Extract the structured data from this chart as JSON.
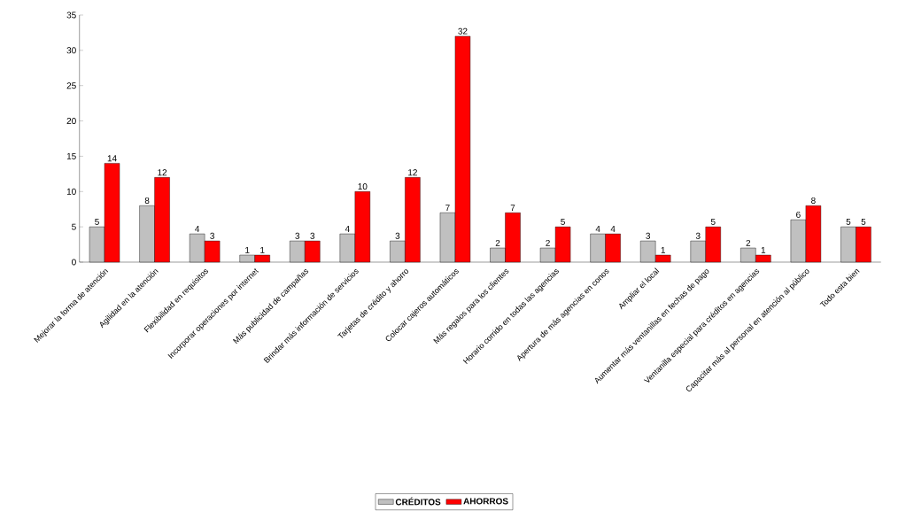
{
  "chart_data": {
    "type": "bar",
    "categories": [
      "Mejorar la forma de atención",
      "Agilidad en la atención",
      "Flexibilidad en requisitos",
      "Incorporar operaciones por internet",
      "Más publicidad de campañas",
      "Brindar más información de servicios",
      "Tarjetas de crédito y ahorro",
      "Colocar cajeros automáticos",
      "Más regalos para los clientes",
      "Horario corrido en todas las agencias",
      "Apertura de más agencias en conos",
      "Ampliar el local",
      "Aumentar más ventanillas en fechas de pago",
      "Ventanilla especial para créditos en agencias",
      "Capacitar más al personal en atención al público",
      "Todo esta bien"
    ],
    "series": [
      {
        "name": "CRÉDITOS",
        "color": "#c0c0c0",
        "values": [
          5,
          8,
          4,
          1,
          3,
          4,
          3,
          7,
          2,
          2,
          4,
          3,
          3,
          2,
          6,
          5
        ]
      },
      {
        "name": "AHORROS",
        "color": "#ff0000",
        "values": [
          14,
          12,
          3,
          1,
          3,
          10,
          12,
          32,
          7,
          5,
          4,
          1,
          5,
          1,
          8,
          5
        ]
      }
    ],
    "ylim": [
      0,
      35
    ],
    "yticks": [
      0,
      5,
      10,
      15,
      20,
      25,
      30,
      35
    ],
    "grid": false,
    "legend": "bottom",
    "data_labels": true
  }
}
